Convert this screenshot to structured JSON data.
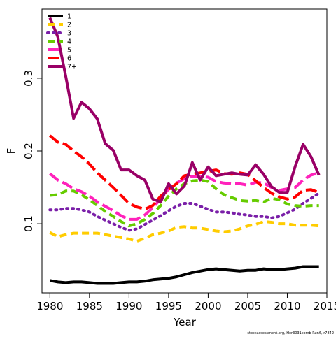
{
  "chart_data": {
    "type": "line",
    "title": "",
    "xlabel": "Year",
    "ylabel": "F",
    "xlim": [
      1979,
      2015
    ],
    "ylim": [
      0.005,
      0.395
    ],
    "x_ticks": [
      1980,
      1985,
      1990,
      1995,
      2000,
      2005,
      2010,
      2015
    ],
    "y_ticks": [
      0.1,
      0.2,
      0.3
    ],
    "y_tick_labels": [
      "0.1",
      "0.2",
      "0.3"
    ],
    "grid": false,
    "legend_position": "top-left",
    "credit": "stockassessment.org, Her3031comb Run6, r7842",
    "x": [
      1980,
      1981,
      1982,
      1983,
      1984,
      1985,
      1986,
      1987,
      1988,
      1989,
      1990,
      1991,
      1992,
      1993,
      1994,
      1995,
      1996,
      1997,
      1998,
      1999,
      2000,
      2001,
      2002,
      2003,
      2004,
      2005,
      2006,
      2007,
      2008,
      2009,
      2010,
      2011,
      2012,
      2013,
      2014
    ],
    "series": [
      {
        "name": "1",
        "color": "#000000",
        "dash": "solid",
        "values": [
          0.022,
          0.02,
          0.019,
          0.02,
          0.02,
          0.019,
          0.018,
          0.018,
          0.018,
          0.019,
          0.02,
          0.02,
          0.021,
          0.023,
          0.024,
          0.025,
          0.027,
          0.03,
          0.033,
          0.035,
          0.037,
          0.038,
          0.037,
          0.036,
          0.035,
          0.036,
          0.036,
          0.038,
          0.037,
          0.037,
          0.038,
          0.039,
          0.041,
          0.041,
          0.041
        ]
      },
      {
        "name": "2",
        "color": "#ffcc00",
        "dash": "dashed",
        "values": [
          0.088,
          0.082,
          0.085,
          0.087,
          0.087,
          0.087,
          0.087,
          0.085,
          0.083,
          0.081,
          0.079,
          0.076,
          0.08,
          0.085,
          0.087,
          0.09,
          0.095,
          0.096,
          0.094,
          0.094,
          0.092,
          0.09,
          0.089,
          0.09,
          0.093,
          0.097,
          0.099,
          0.103,
          0.102,
          0.1,
          0.1,
          0.098,
          0.098,
          0.098,
          0.097
        ]
      },
      {
        "name": "3",
        "color": "#7a1fa8",
        "dash": "dotted",
        "values": [
          0.119,
          0.119,
          0.121,
          0.121,
          0.119,
          0.116,
          0.11,
          0.105,
          0.1,
          0.095,
          0.091,
          0.093,
          0.099,
          0.105,
          0.111,
          0.118,
          0.124,
          0.128,
          0.128,
          0.124,
          0.12,
          0.116,
          0.116,
          0.115,
          0.113,
          0.112,
          0.11,
          0.11,
          0.108,
          0.11,
          0.115,
          0.12,
          0.128,
          0.135,
          0.142
        ]
      },
      {
        "name": "4",
        "color": "#66cc00",
        "dash": "dashed",
        "values": [
          0.139,
          0.14,
          0.145,
          0.145,
          0.14,
          0.133,
          0.125,
          0.117,
          0.11,
          0.103,
          0.097,
          0.1,
          0.106,
          0.114,
          0.125,
          0.138,
          0.148,
          0.155,
          0.159,
          0.16,
          0.158,
          0.148,
          0.14,
          0.136,
          0.132,
          0.131,
          0.132,
          0.13,
          0.135,
          0.133,
          0.127,
          0.125,
          0.124,
          0.125,
          0.125
        ]
      },
      {
        "name": "5",
        "color": "#ff22bb",
        "dash": "longdash",
        "values": [
          0.169,
          0.16,
          0.155,
          0.148,
          0.144,
          0.138,
          0.13,
          0.124,
          0.118,
          0.111,
          0.106,
          0.106,
          0.112,
          0.122,
          0.134,
          0.148,
          0.156,
          0.162,
          0.165,
          0.165,
          0.164,
          0.158,
          0.156,
          0.155,
          0.155,
          0.153,
          0.157,
          0.156,
          0.15,
          0.146,
          0.148,
          0.15,
          0.16,
          0.167,
          0.17
        ]
      },
      {
        "name": "6",
        "color": "#ff0000",
        "dash": "longdash",
        "values": [
          0.221,
          0.212,
          0.209,
          0.2,
          0.192,
          0.182,
          0.17,
          0.16,
          0.15,
          0.139,
          0.128,
          0.123,
          0.12,
          0.125,
          0.138,
          0.147,
          0.155,
          0.166,
          0.168,
          0.17,
          0.172,
          0.174,
          0.169,
          0.168,
          0.17,
          0.168,
          0.159,
          0.15,
          0.142,
          0.137,
          0.134,
          0.137,
          0.146,
          0.147,
          0.143
        ]
      },
      {
        "name": "7+",
        "color": "#990066",
        "dash": "solid",
        "values": [
          0.383,
          0.357,
          0.303,
          0.245,
          0.267,
          0.258,
          0.244,
          0.21,
          0.201,
          0.174,
          0.174,
          0.166,
          0.16,
          0.134,
          0.13,
          0.155,
          0.141,
          0.152,
          0.184,
          0.16,
          0.178,
          0.166,
          0.168,
          0.17,
          0.168,
          0.167,
          0.181,
          0.168,
          0.151,
          0.143,
          0.143,
          0.179,
          0.209,
          0.192,
          0.167
        ]
      }
    ]
  }
}
